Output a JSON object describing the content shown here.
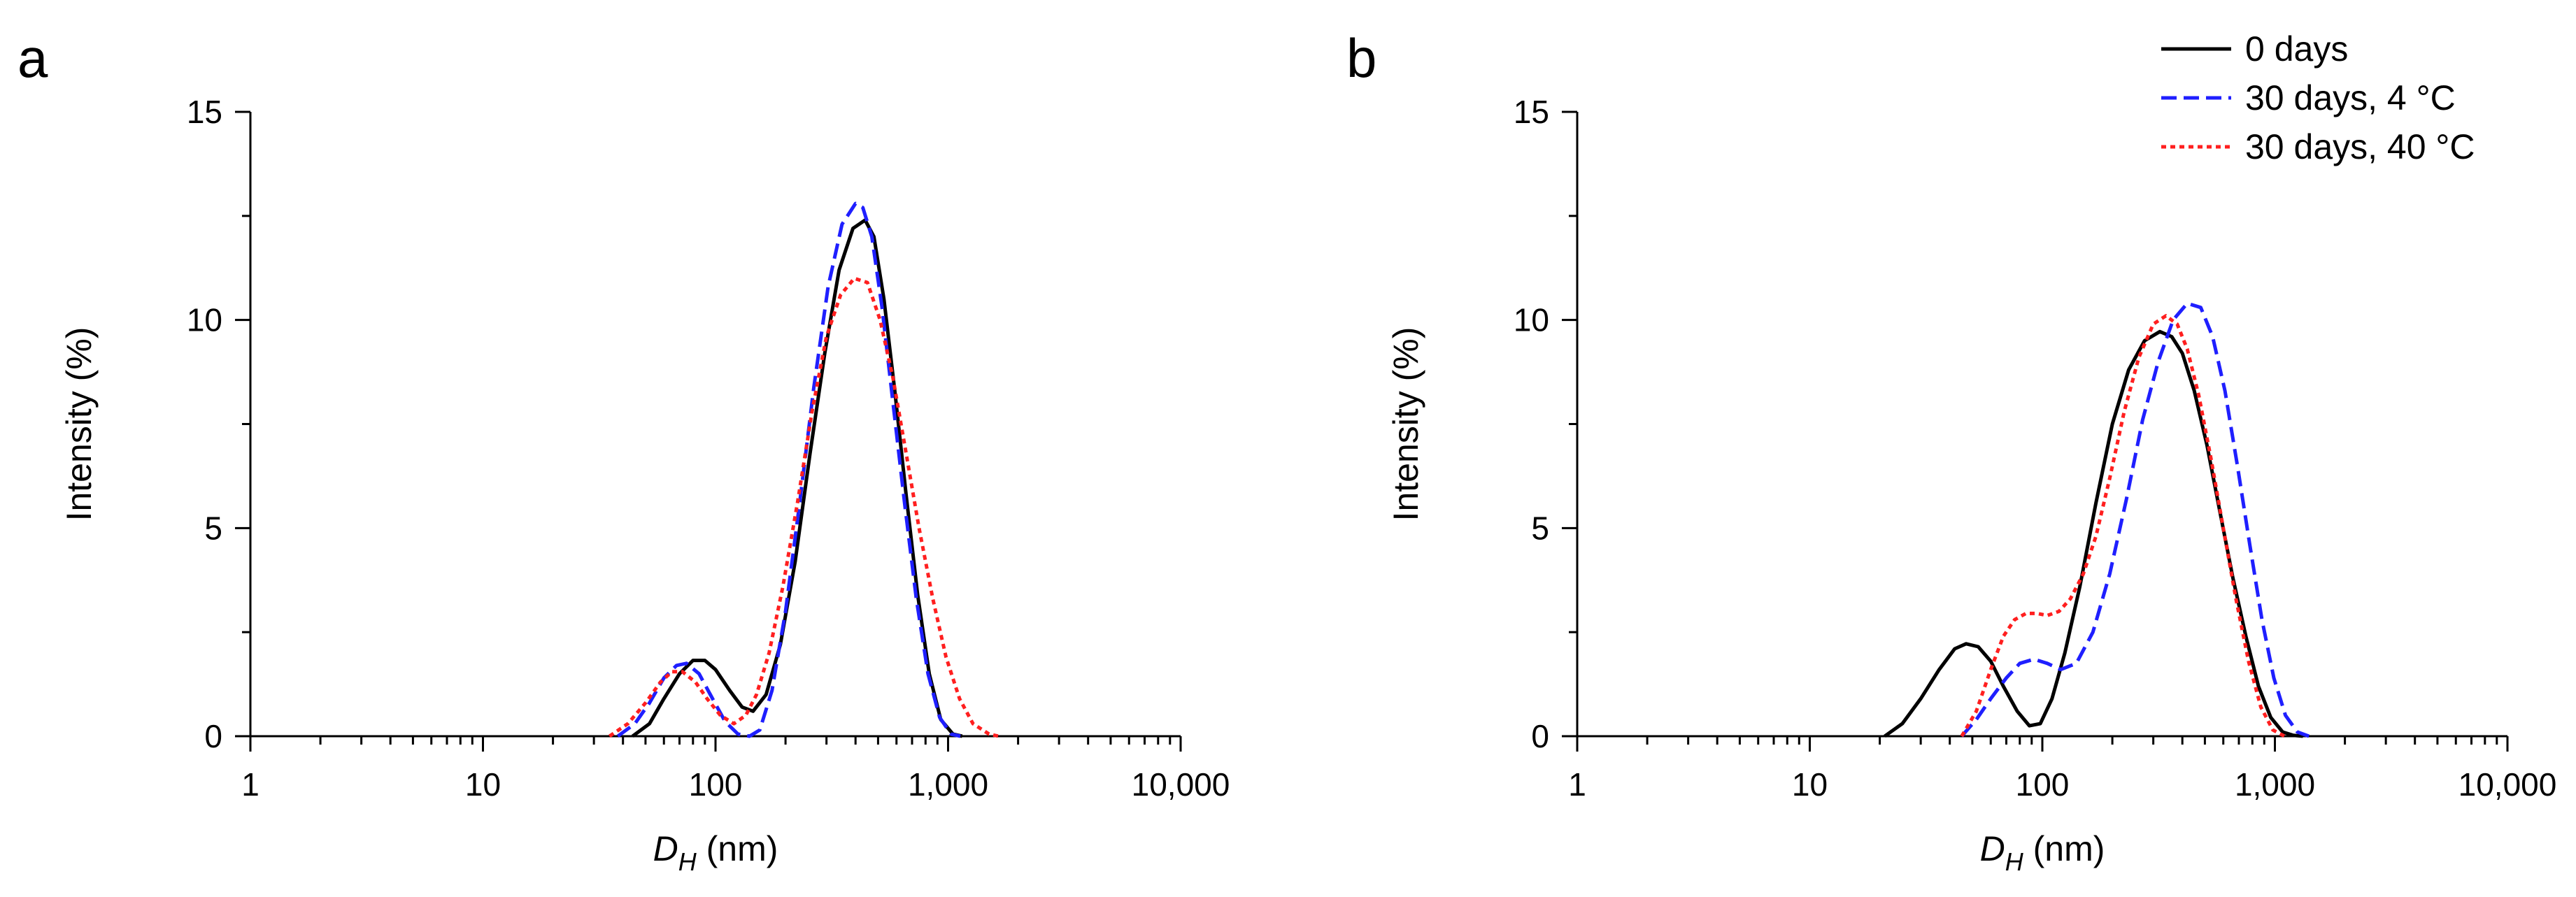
{
  "chart_data": [
    {
      "type": "line",
      "panel": "a",
      "xscale": "log",
      "xlabel_main": "D",
      "xlabel_sub": "H",
      "xlabel_unit": " (nm)",
      "ylabel": "Intensity (%)",
      "xlim": [
        1,
        10000
      ],
      "ylim": [
        0,
        15
      ],
      "xticks": [
        1,
        10,
        100,
        1000,
        10000
      ],
      "xtick_labels": [
        "1",
        "10",
        "100",
        "1,000",
        "10,000"
      ],
      "yticks": [
        0,
        5,
        10,
        15
      ],
      "ytick_labels": [
        "0",
        "5",
        "10",
        "15"
      ],
      "series": [
        {
          "name": "0 days",
          "color": "#000000",
          "dash": "solid",
          "x": [
            44,
            52,
            60,
            70,
            80,
            90,
            100,
            115,
            130,
            145,
            165,
            190,
            220,
            255,
            295,
            340,
            390,
            440,
            480,
            530,
            590,
            660,
            740,
            830,
            930,
            1050,
            1150
          ],
          "y": [
            0,
            0.3,
            0.9,
            1.5,
            1.82,
            1.82,
            1.6,
            1.1,
            0.7,
            0.6,
            1.0,
            2.2,
            4.2,
            6.8,
            9.2,
            11.2,
            12.2,
            12.4,
            12.0,
            10.5,
            8.3,
            5.8,
            3.4,
            1.5,
            0.4,
            0.05,
            0
          ]
        },
        {
          "name": "30 days, 4 °C",
          "color": "#1f1fff",
          "dash": "dashed",
          "x": [
            38,
            45,
            52,
            60,
            68,
            75,
            85,
            95,
            110,
            125,
            140,
            155,
            175,
            200,
            230,
            265,
            305,
            350,
            400,
            430,
            470,
            520,
            580,
            650,
            730,
            820,
            920,
            1030,
            1130
          ],
          "y": [
            0,
            0.3,
            0.8,
            1.4,
            1.7,
            1.75,
            1.5,
            1.0,
            0.35,
            0.05,
            0,
            0.15,
            1.1,
            3.0,
            5.6,
            8.4,
            10.8,
            12.3,
            12.8,
            12.7,
            12.0,
            10.3,
            8.0,
            5.6,
            3.3,
            1.5,
            0.45,
            0.05,
            0
          ]
        },
        {
          "name": "30 days, 40 °C",
          "color": "#ff1f1f",
          "dash": "dotted",
          "x": [
            35,
            42,
            50,
            58,
            65,
            72,
            82,
            92,
            105,
            120,
            135,
            150,
            170,
            195,
            225,
            260,
            300,
            345,
            395,
            450,
            510,
            580,
            660,
            750,
            860,
            980,
            1120,
            1280,
            1500,
            1650
          ],
          "y": [
            0,
            0.3,
            0.8,
            1.3,
            1.55,
            1.55,
            1.3,
            0.9,
            0.5,
            0.3,
            0.5,
            1.0,
            2.0,
            3.6,
            5.6,
            7.8,
            9.6,
            10.6,
            11.0,
            10.9,
            10.0,
            8.6,
            6.8,
            5.0,
            3.3,
            1.9,
            0.9,
            0.3,
            0.05,
            0
          ]
        }
      ]
    },
    {
      "type": "line",
      "panel": "b",
      "xscale": "log",
      "xlabel_main": "D",
      "xlabel_sub": "H",
      "xlabel_unit": " (nm)",
      "ylabel": "Intensity (%)",
      "xlim": [
        1,
        10000
      ],
      "ylim": [
        0,
        15
      ],
      "xticks": [
        1,
        10,
        100,
        1000,
        10000
      ],
      "xtick_labels": [
        "1",
        "10",
        "100",
        "1,000",
        "10,000"
      ],
      "yticks": [
        0,
        5,
        10,
        15
      ],
      "ytick_labels": [
        "0",
        "5",
        "10",
        "15"
      ],
      "legend_position": "top-right",
      "series": [
        {
          "name": "0 days",
          "color": "#000000",
          "dash": "solid",
          "x": [
            21,
            25,
            30,
            36,
            42,
            47,
            53,
            60,
            68,
            78,
            88,
            98,
            110,
            125,
            145,
            170,
            200,
            235,
            275,
            320,
            360,
            400,
            450,
            510,
            580,
            660,
            750,
            850,
            960,
            1080,
            1200,
            1320
          ],
          "y": [
            0,
            0.3,
            0.9,
            1.6,
            2.1,
            2.22,
            2.15,
            1.8,
            1.2,
            0.6,
            0.25,
            0.3,
            0.9,
            2.0,
            3.6,
            5.6,
            7.5,
            8.8,
            9.5,
            9.72,
            9.6,
            9.2,
            8.3,
            7.0,
            5.4,
            3.8,
            2.4,
            1.2,
            0.45,
            0.1,
            0.02,
            0
          ]
        },
        {
          "name": "30 days, 4 °C",
          "color": "#1f1fff",
          "dash": "dashed",
          "x": [
            45,
            52,
            60,
            70,
            80,
            92,
            105,
            120,
            140,
            165,
            195,
            230,
            270,
            315,
            365,
            420,
            480,
            540,
            610,
            690,
            780,
            880,
            990,
            1110,
            1250,
            1400
          ],
          "y": [
            0,
            0.4,
            0.9,
            1.4,
            1.75,
            1.85,
            1.75,
            1.6,
            1.75,
            2.5,
            3.9,
            5.7,
            7.6,
            9.0,
            10.0,
            10.4,
            10.3,
            9.6,
            8.3,
            6.5,
            4.6,
            2.8,
            1.4,
            0.5,
            0.1,
            0
          ]
        },
        {
          "name": "30 days, 40 °C",
          "color": "#ff1f1f",
          "dash": "dotted",
          "x": [
            45,
            52,
            60,
            68,
            76,
            85,
            95,
            105,
            118,
            132,
            150,
            170,
            195,
            225,
            260,
            300,
            340,
            380,
            420,
            470,
            530,
            600,
            680,
            770,
            870,
            980,
            1100
          ],
          "y": [
            0,
            0.6,
            1.6,
            2.4,
            2.8,
            2.95,
            2.95,
            2.9,
            3.0,
            3.3,
            3.9,
            4.8,
            6.2,
            7.8,
            9.1,
            9.9,
            10.1,
            9.9,
            9.3,
            8.2,
            6.7,
            5.0,
            3.3,
            1.8,
            0.7,
            0.15,
            0
          ]
        }
      ]
    }
  ]
}
